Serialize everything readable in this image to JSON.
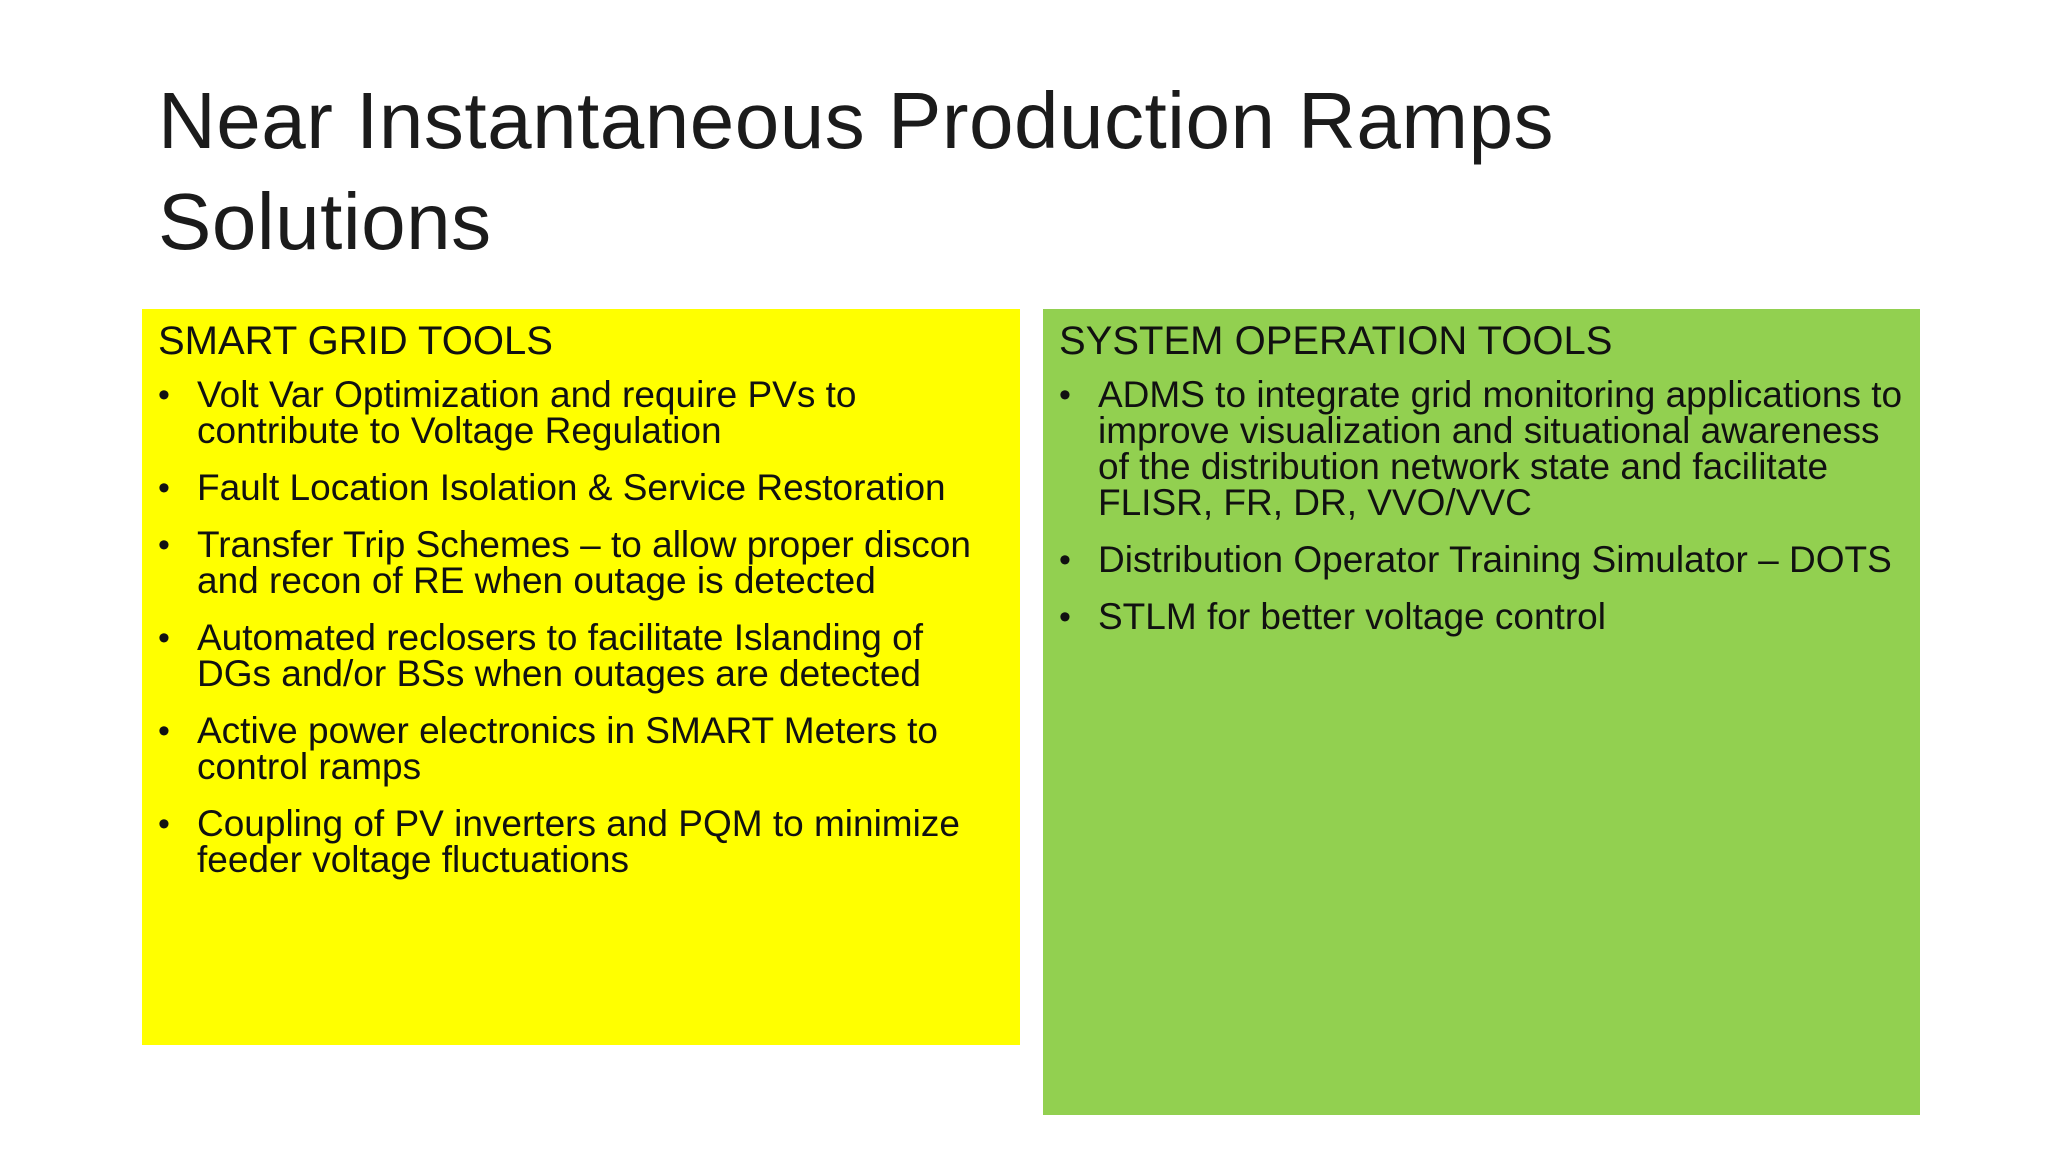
{
  "slide": {
    "title_lines": [
      "Near Instantaneous Production Ramps",
      "Solutions"
    ]
  },
  "smart_grid": {
    "heading": "SMART GRID TOOLS",
    "color": "#ffff00",
    "items": [
      "Volt Var Optimization and require PVs to contribute to Voltage Regulation",
      "Fault Location Isolation & Service Restoration",
      "Transfer Trip Schemes – to allow proper discon and recon of RE when outage is detected",
      "Automated reclosers to facilitate Islanding of DGs and/or BSs when outages are detected",
      "Active power electronics in SMART Meters to control ramps",
      "Coupling of PV inverters and PQM to minimize feeder voltage fluctuations"
    ]
  },
  "system_operation": {
    "heading": "SYSTEM OPERATION TOOLS",
    "color": "#92d050",
    "items": [
      "ADMS to integrate grid monitoring applications to improve visualization and situational awareness of the distribution network state and facilitate FLISR, FR, DR, VVO/VVC",
      "Distribution Operator Training Simulator – DOTS",
      "STLM for better voltage control"
    ]
  }
}
